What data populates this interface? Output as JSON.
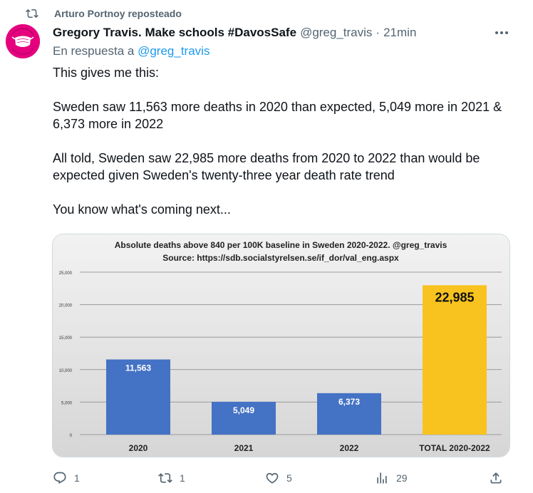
{
  "repost": {
    "label": "Arturo Portnoy reposteado",
    "icon": "repost-icon"
  },
  "author": {
    "name": "Gregory Travis. Make schools #DavosSafe",
    "handle": "@greg_travis",
    "separator": "·",
    "time": "21min",
    "avatar_color": "#e5007e"
  },
  "reply": {
    "prefix": "En respuesta a",
    "handle": "@greg_travis"
  },
  "tweet": {
    "paragraphs": [
      "This gives me this:",
      "Sweden saw 11,563 more deaths in 2020 than expected, 5,049 more in 2021 & 6,373 more in 2022",
      "All told, Sweden saw 22,985 more deaths from 2020 to 2022 than would be expected given Sweden's twenty-three year death rate trend",
      "You know what's coming next..."
    ]
  },
  "chart_data": {
    "type": "bar",
    "title": "Absolute deaths above 840 per 100K baseline in Sweden 2020-2022.  @greg_travis",
    "subtitle": "Source: https://sdb.socialstyrelsen.se/if_dor/val_eng.aspx",
    "categories": [
      "2020",
      "2021",
      "2022",
      "TOTAL 2020-2022"
    ],
    "values": [
      11563,
      5049,
      6373,
      22985
    ],
    "value_labels": [
      "11,563",
      "5,049",
      "6,373",
      "22,985"
    ],
    "colors": [
      "#4472c4",
      "#4472c4",
      "#4472c4",
      "#f9c31f"
    ],
    "ylim": [
      0,
      25000
    ],
    "yticks": [
      0,
      5000,
      10000,
      15000,
      20000,
      25000
    ],
    "ytick_labels": [
      "0",
      "5,000",
      "10,000",
      "15,000",
      "20,000",
      "25,000"
    ],
    "grid": true,
    "legend": "none"
  },
  "actions": [
    {
      "name": "reply",
      "icon": "reply-icon",
      "count": "1"
    },
    {
      "name": "repost",
      "icon": "repost-icon",
      "count": "1"
    },
    {
      "name": "like",
      "icon": "heart-icon",
      "count": "5"
    },
    {
      "name": "views",
      "icon": "bar-chart-icon",
      "count": "29"
    },
    {
      "name": "share",
      "icon": "share-icon",
      "count": ""
    }
  ],
  "colors": {
    "accent": "#1d9bf0",
    "secondary_text": "#536471",
    "primary_text": "#0f1419"
  }
}
